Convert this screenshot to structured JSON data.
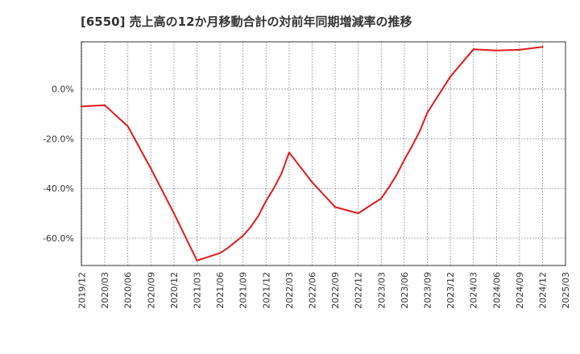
{
  "chart_data": {
    "type": "line",
    "title": "[6550]  売上高の12か月移動合計の対前年同期増減率の推移",
    "xlabel": "",
    "ylabel": "",
    "x_ticks": [
      "2019/12",
      "2020/03",
      "2020/06",
      "2020/09",
      "2020/12",
      "2021/03",
      "2021/06",
      "2021/09",
      "2021/12",
      "2022/03",
      "2022/06",
      "2022/09",
      "2022/12",
      "2023/03",
      "2023/06",
      "2023/09",
      "2023/12",
      "2024/03",
      "2024/06",
      "2024/09",
      "2024/12",
      "2025/03"
    ],
    "y_ticks": [
      {
        "value": 0,
        "label": "0.0%"
      },
      {
        "value": -20,
        "label": "-20.0%"
      },
      {
        "value": -40,
        "label": "-40.0%"
      },
      {
        "value": -60,
        "label": "-60.0%"
      }
    ],
    "ylim": [
      -71,
      19
    ],
    "grid": true,
    "series": [
      {
        "color": "#e31a1c",
        "points": [
          {
            "x": "2019/12",
            "y": -7.0
          },
          {
            "x": "2020/03",
            "y": -6.5
          },
          {
            "x": "2020/06",
            "y": -15.0
          },
          {
            "x": "2020/09",
            "y": -32.0
          },
          {
            "x": "2020/12",
            "y": -50.0
          },
          {
            "x": "2021/03",
            "y": -69.0
          },
          {
            "x": "2021/06",
            "y": -66.0
          },
          {
            "x": "2021/07",
            "y": -64.0
          },
          {
            "x": "2021/08",
            "y": -61.5
          },
          {
            "x": "2021/09",
            "y": -59.0
          },
          {
            "x": "2021/10",
            "y": -55.5
          },
          {
            "x": "2021/11",
            "y": -51.0
          },
          {
            "x": "2021/12",
            "y": -45.0
          },
          {
            "x": "2022/01",
            "y": -40.0
          },
          {
            "x": "2022/02",
            "y": -34.0
          },
          {
            "x": "2022/03",
            "y": -25.5
          },
          {
            "x": "2022/06",
            "y": -37.5
          },
          {
            "x": "2022/09",
            "y": -47.5
          },
          {
            "x": "2022/12",
            "y": -50.0
          },
          {
            "x": "2023/03",
            "y": -44.0
          },
          {
            "x": "2023/04",
            "y": -39.5
          },
          {
            "x": "2023/05",
            "y": -34.5
          },
          {
            "x": "2023/06",
            "y": -28.5
          },
          {
            "x": "2023/07",
            "y": -23.0
          },
          {
            "x": "2023/08",
            "y": -17.0
          },
          {
            "x": "2023/09",
            "y": -9.5
          },
          {
            "x": "2023/12",
            "y": 5.0
          },
          {
            "x": "2024/03",
            "y": 16.0
          },
          {
            "x": "2024/06",
            "y": 15.5
          },
          {
            "x": "2024/09",
            "y": 15.8
          },
          {
            "x": "2024/12",
            "y": 17.0
          }
        ]
      }
    ]
  }
}
